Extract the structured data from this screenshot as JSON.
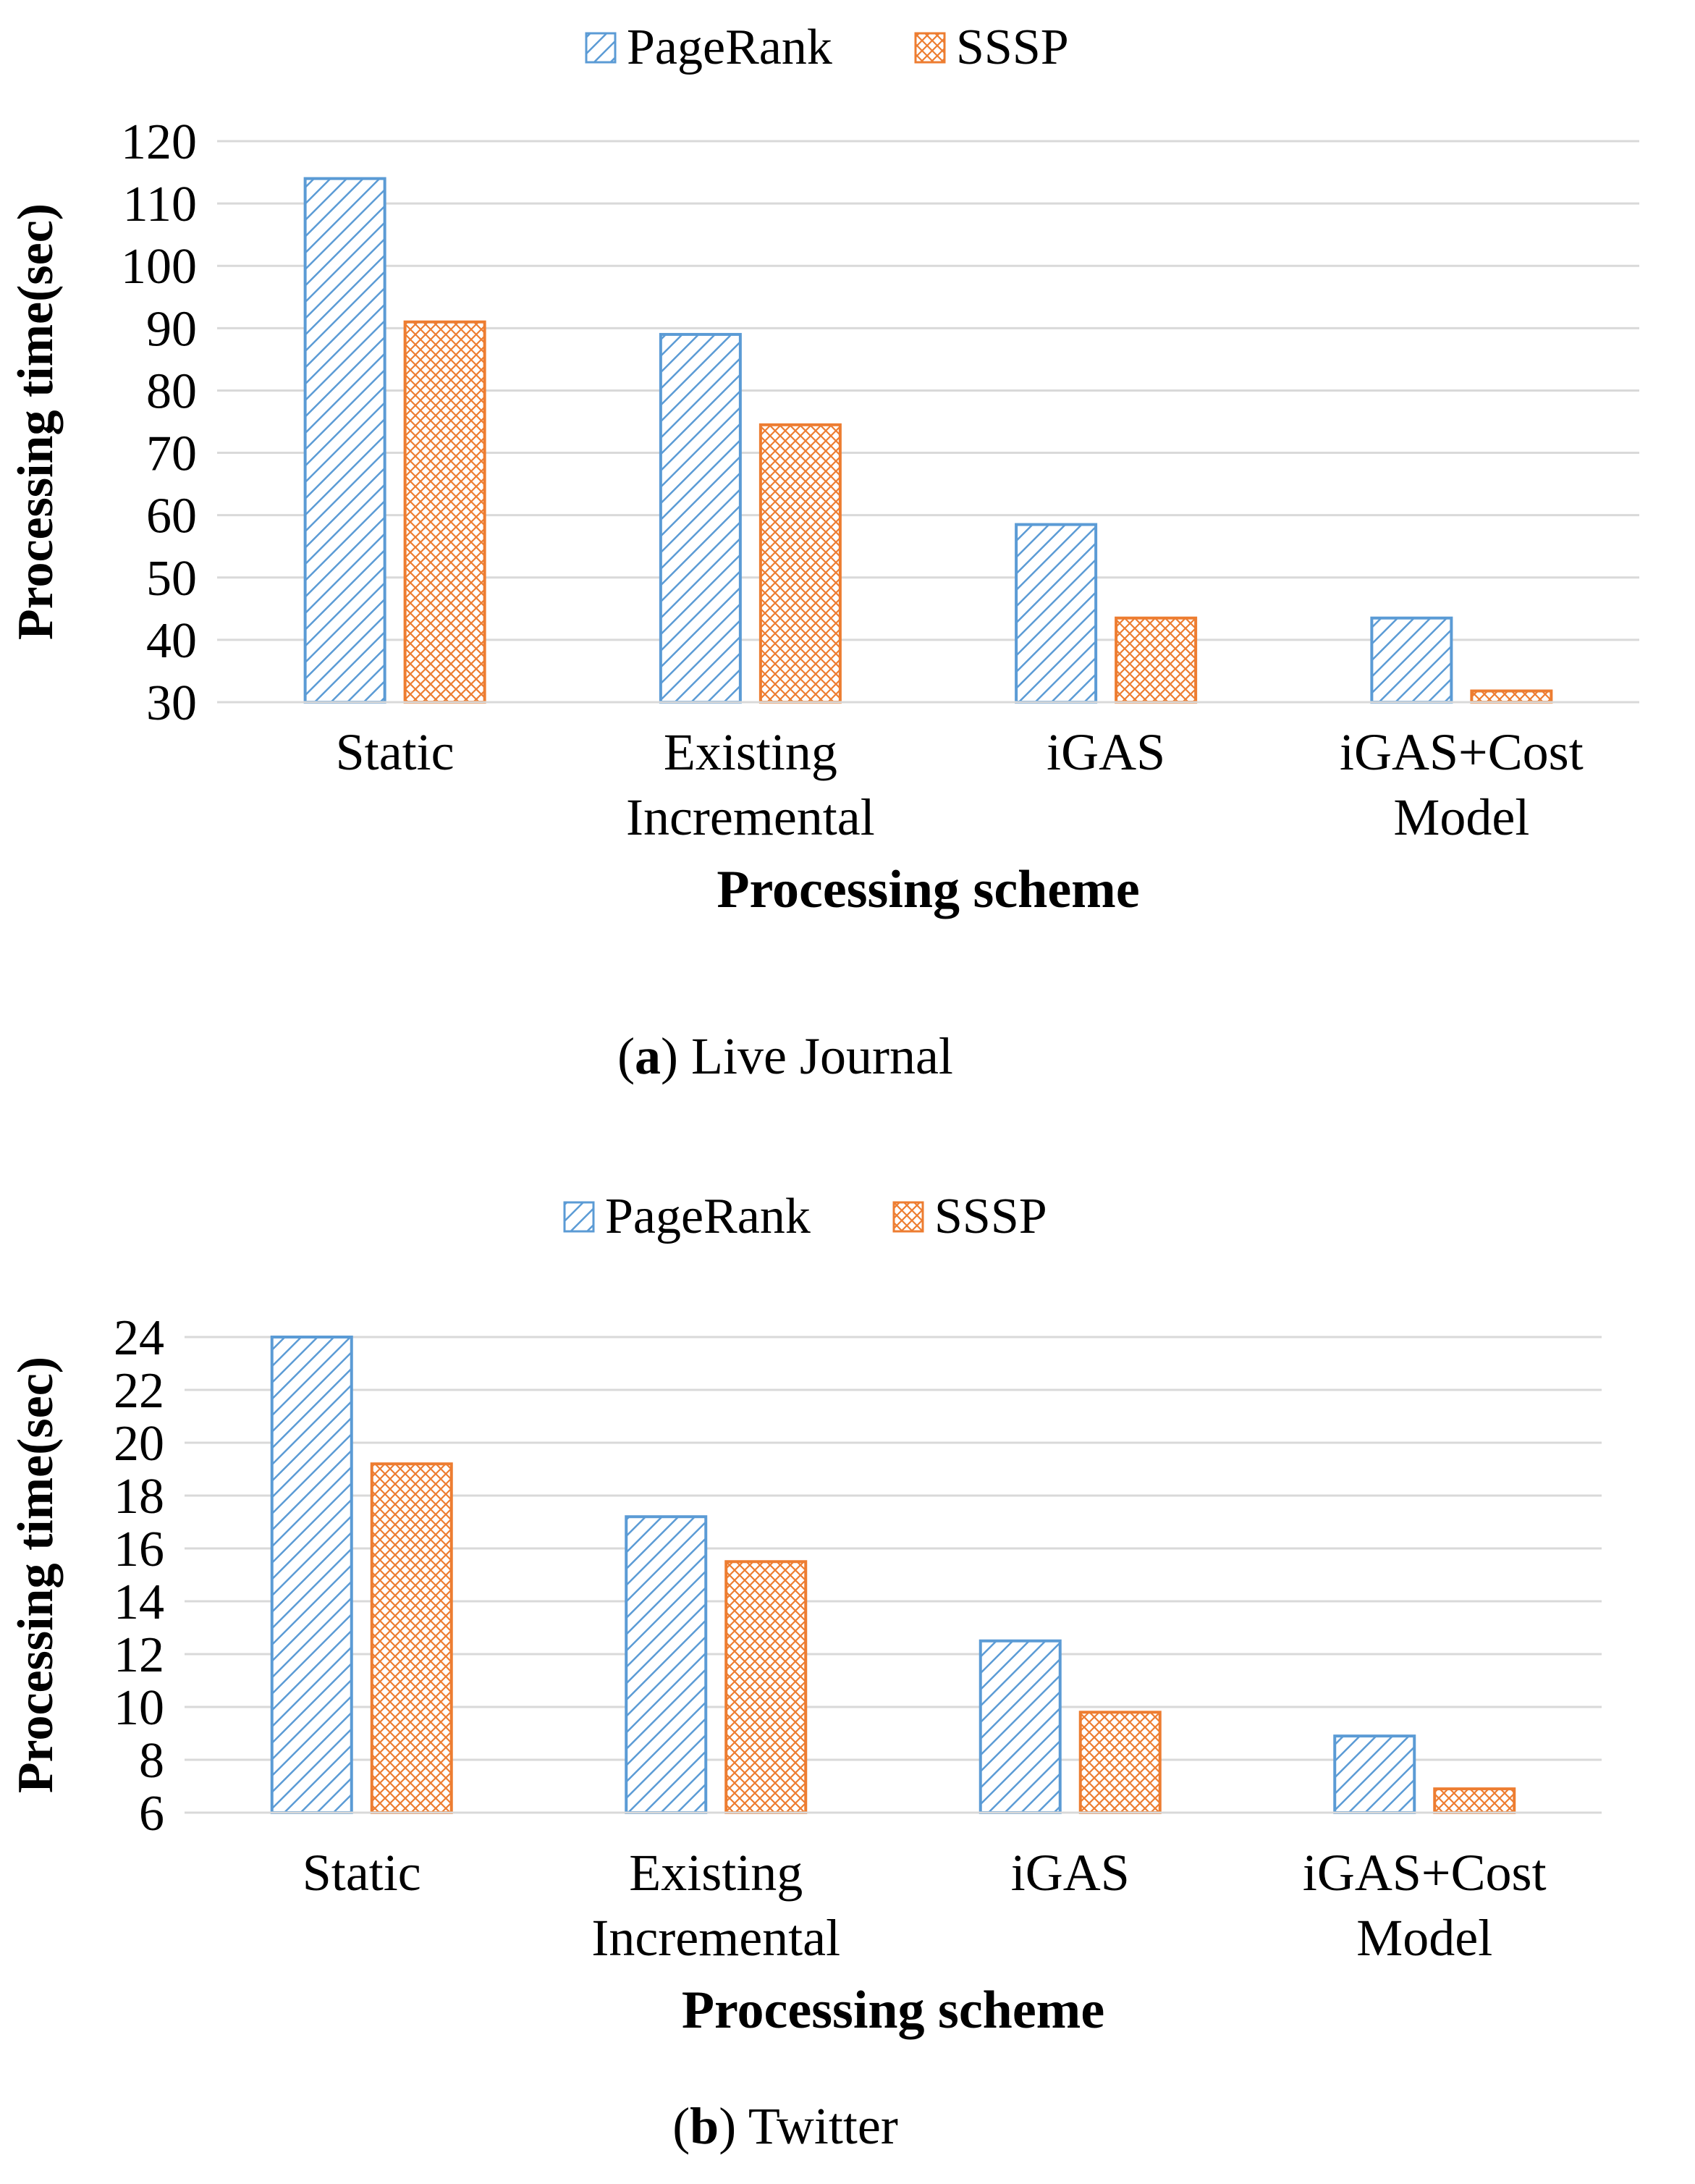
{
  "legend": {
    "pagerank": "PageRank",
    "sssp": "SSSP"
  },
  "colors": {
    "pagerank": "#5B9BD5",
    "sssp": "#ED7D31",
    "grid": "#D9D9D9",
    "axis": "#D9D9D9"
  },
  "chart_data": [
    {
      "type": "bar",
      "caption_letter": "a",
      "caption_text": " Live Journal",
      "xlabel": "Processing scheme",
      "ylabel": "Processing time(sec)",
      "ylim": [
        30,
        120
      ],
      "yticks": [
        30,
        40,
        50,
        60,
        70,
        80,
        90,
        100,
        110,
        120
      ],
      "categories": [
        [
          "Static"
        ],
        [
          "Existing",
          "Incremental"
        ],
        [
          "iGAS"
        ],
        [
          "iGAS+Cost",
          "Model"
        ]
      ],
      "series": [
        {
          "name": "PageRank",
          "values": [
            114,
            89,
            58.5,
            43.5
          ]
        },
        {
          "name": "SSSP",
          "values": [
            91,
            74.5,
            43.5,
            31.8
          ]
        }
      ]
    },
    {
      "type": "bar",
      "caption_letter": "b",
      "caption_text": " Twitter",
      "xlabel": "Processing scheme",
      "ylabel": "Processing time(sec)",
      "ylim": [
        6,
        24
      ],
      "yticks": [
        6,
        8,
        10,
        12,
        14,
        16,
        18,
        20,
        22,
        24
      ],
      "categories": [
        [
          "Static"
        ],
        [
          "Existing",
          "Incremental"
        ],
        [
          "iGAS"
        ],
        [
          "iGAS+Cost",
          "Model"
        ]
      ],
      "series": [
        {
          "name": "PageRank",
          "values": [
            24,
            17.2,
            12.5,
            8.9
          ]
        },
        {
          "name": "SSSP",
          "values": [
            19.2,
            15.5,
            9.8,
            6.9
          ]
        }
      ]
    }
  ]
}
